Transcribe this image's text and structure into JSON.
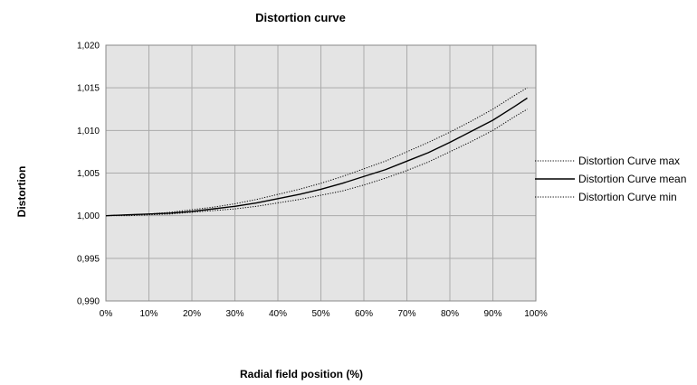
{
  "chart_data": {
    "type": "line",
    "title": "Distortion curve",
    "xlabel": "Radial field position (%)",
    "ylabel": "Distortion",
    "xlim": [
      0,
      100
    ],
    "ylim": [
      0.99,
      1.02
    ],
    "x_ticks": [
      "0%",
      "10%",
      "20%",
      "30%",
      "40%",
      "50%",
      "60%",
      "70%",
      "80%",
      "90%",
      "100%"
    ],
    "y_ticks": [
      "0,990",
      "0,995",
      "1,000",
      "1,005",
      "1,010",
      "1,015",
      "1,020"
    ],
    "grid": true,
    "legend_position": "right",
    "x": [
      0,
      5,
      10,
      15,
      20,
      25,
      30,
      35,
      40,
      45,
      50,
      55,
      60,
      65,
      70,
      75,
      80,
      85,
      90,
      95,
      98
    ],
    "series": [
      {
        "name": "Distortion Curve max",
        "style": "dotted",
        "values": [
          1.0,
          1.0001,
          1.0002,
          1.0004,
          1.0007,
          1.001,
          1.0014,
          1.0019,
          1.0025,
          1.0031,
          1.0038,
          1.0046,
          1.0055,
          1.0064,
          1.0075,
          1.0086,
          1.0098,
          1.0111,
          1.0125,
          1.0141,
          1.015
        ]
      },
      {
        "name": "Distortion Curve mean",
        "style": "solid",
        "values": [
          1.0,
          1.0001,
          1.0002,
          1.0003,
          1.0005,
          1.0008,
          1.0011,
          1.0015,
          1.002,
          1.0025,
          1.0031,
          1.0038,
          1.0046,
          1.0054,
          1.0064,
          1.0074,
          1.0086,
          1.0099,
          1.0112,
          1.0128,
          1.0138
        ]
      },
      {
        "name": "Distortion Curve min",
        "style": "dotted",
        "values": [
          1.0,
          1.0,
          1.0001,
          1.0002,
          1.0004,
          1.0006,
          1.0008,
          1.0011,
          1.0015,
          1.0019,
          1.0024,
          1.0029,
          1.0036,
          1.0044,
          1.0053,
          1.0063,
          1.0075,
          1.0087,
          1.01,
          1.0116,
          1.0125
        ]
      }
    ]
  },
  "colors": {
    "plot_background": "#e4e4e4",
    "gridline": "#ababab",
    "line": "#000000"
  }
}
